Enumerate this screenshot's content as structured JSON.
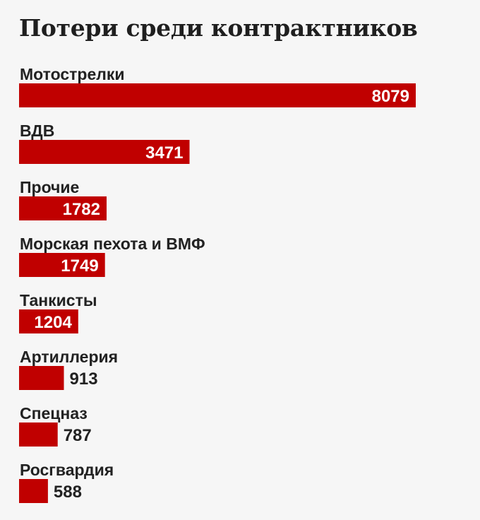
{
  "chart_data": {
    "type": "bar",
    "orientation": "horizontal",
    "title": "Потери среди контрактников",
    "categories": [
      "Мотострелки",
      "ВДВ",
      "Прочие",
      "Морская пехота и ВМФ",
      "Танкисты",
      "Артиллерия",
      "Спецназ",
      "Росгвардия"
    ],
    "values": [
      8079,
      3471,
      1782,
      1749,
      1204,
      913,
      787,
      588
    ],
    "xlim": [
      0,
      8079
    ],
    "grid": false,
    "legend": "none",
    "bar_color": "#c00000"
  }
}
